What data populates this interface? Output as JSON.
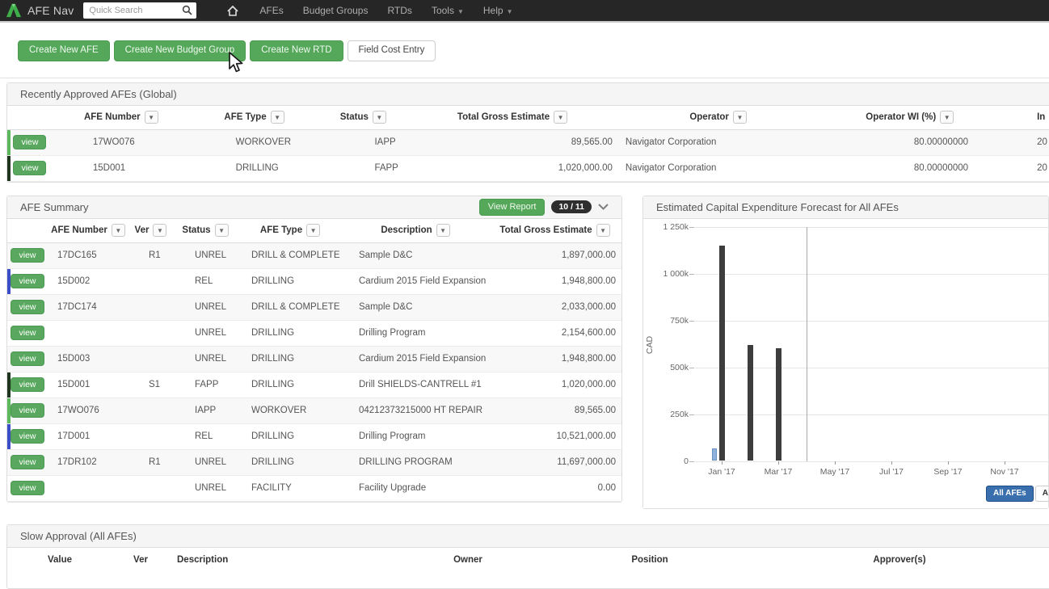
{
  "navbar": {
    "brand": "AFE Nav",
    "search_placeholder": "Quick Search",
    "items": [
      {
        "label": "AFEs",
        "has_caret": false
      },
      {
        "label": "Budget Groups",
        "has_caret": false
      },
      {
        "label": "RTDs",
        "has_caret": false
      },
      {
        "label": "Tools",
        "has_caret": true
      },
      {
        "label": "Help",
        "has_caret": true
      }
    ]
  },
  "toolbar": {
    "buttons": [
      {
        "label": "Create New AFE",
        "style": "green"
      },
      {
        "label": "Create New Budget Group",
        "style": "green"
      },
      {
        "label": "Create New RTD",
        "style": "green"
      },
      {
        "label": "Field Cost Entry",
        "style": "white"
      }
    ]
  },
  "recently_approved": {
    "title": "Recently Approved AFEs (Global)",
    "view_button_label": "view",
    "columns": [
      {
        "label": "AFE Number",
        "caret": true
      },
      {
        "label": "AFE Type",
        "caret": true
      },
      {
        "label": "Status",
        "caret": true
      },
      {
        "label": "Total Gross Estimate",
        "caret": true
      },
      {
        "label": "Operator",
        "caret": true
      },
      {
        "label": "Operator WI (%)",
        "caret": true
      },
      {
        "label": "In",
        "caret": false
      }
    ],
    "rows": [
      {
        "accent": "green",
        "cells": [
          "17WO076",
          "WORKOVER",
          "IAPP",
          "89,565.00",
          "Navigator Corporation",
          "80.00000000",
          "20"
        ]
      },
      {
        "accent": "dark",
        "cells": [
          "15D001",
          "DRILLING",
          "FAPP",
          "1,020,000.00",
          "Navigator Corporation",
          "80.00000000",
          "20"
        ]
      }
    ]
  },
  "afe_summary": {
    "title": "AFE Summary",
    "view_report_label": "View Report",
    "count_badge": "10 / 11",
    "view_button_label": "view",
    "columns": [
      {
        "label": "AFE Number",
        "caret": true
      },
      {
        "label": "Ver",
        "caret": true
      },
      {
        "label": "Status",
        "caret": true
      },
      {
        "label": "AFE Type",
        "caret": true
      },
      {
        "label": "Description",
        "caret": true
      },
      {
        "label": "Total Gross Estimate",
        "caret": true
      }
    ],
    "rows": [
      {
        "accent": "",
        "cells": [
          "17DC165",
          "R1",
          "UNREL",
          "DRILL & COMPLETE",
          "Sample D&C",
          "1,897,000.00"
        ]
      },
      {
        "accent": "blue",
        "cells": [
          "15D002",
          "",
          "REL",
          "DRILLING",
          "Cardium 2015 Field Expansion",
          "1,948,800.00"
        ]
      },
      {
        "accent": "",
        "cells": [
          "17DC174",
          "",
          "UNREL",
          "DRILL & COMPLETE",
          "Sample D&C",
          "2,033,000.00"
        ]
      },
      {
        "accent": "",
        "cells": [
          "",
          "",
          "UNREL",
          "DRILLING",
          "Drilling Program",
          "2,154,600.00"
        ]
      },
      {
        "accent": "",
        "cells": [
          "15D003",
          "",
          "UNREL",
          "DRILLING",
          "Cardium 2015 Field Expansion",
          "1,948,800.00"
        ]
      },
      {
        "accent": "dark",
        "cells": [
          "15D001",
          "S1",
          "FAPP",
          "DRILLING",
          "Drill SHIELDS-CANTRELL #1",
          "1,020,000.00"
        ]
      },
      {
        "accent": "green",
        "cells": [
          "17WO076",
          "",
          "IAPP",
          "WORKOVER",
          "04212373215000 HT REPAIR",
          "89,565.00"
        ]
      },
      {
        "accent": "blue",
        "cells": [
          "17D001",
          "",
          "REL",
          "DRILLING",
          "Drilling Program",
          "10,521,000.00"
        ]
      },
      {
        "accent": "",
        "cells": [
          "17DR102",
          "R1",
          "UNREL",
          "DRILLING",
          "DRILLING PROGRAM",
          "11,697,000.00"
        ]
      },
      {
        "accent": "",
        "cells": [
          "",
          "",
          "UNREL",
          "FACILITY",
          "Facility Upgrade",
          "0.00"
        ]
      }
    ]
  },
  "chart_data": {
    "type": "bar",
    "title": "Estimated Capital Expenditure Forecast for All AFEs",
    "xlabel": "",
    "ylabel": "CAD",
    "ylim": [
      0,
      1250000
    ],
    "ytick_labels": [
      "0",
      "250k",
      "500k",
      "750k",
      "1 000k",
      "1 250k"
    ],
    "months": [
      "Jan '17",
      "Feb '17",
      "Mar '17",
      "Apr '17",
      "May '17",
      "Jun '17",
      "Jul '17",
      "Aug '17",
      "Sep '17",
      "Oct '17",
      "Nov '17",
      "Dec '17"
    ],
    "xtick_months": [
      "Jan '17",
      "Mar '17",
      "May '17",
      "Jul '17",
      "Sep '17",
      "Nov '17"
    ],
    "grid": true,
    "series": [
      {
        "name": "blue-series",
        "color": "#8fb3dc",
        "border": "#6a94c4",
        "bars": [
          {
            "month": "Jan '17",
            "value": 65000
          }
        ]
      },
      {
        "name": "dark-series",
        "color": "#3d3d3d",
        "border": "#3d3d3d",
        "bars": [
          {
            "month": "Jan '17",
            "value": 1150000
          },
          {
            "month": "Feb '17",
            "value": 620000
          },
          {
            "month": "Mar '17",
            "value": 600000
          }
        ]
      }
    ],
    "marker_line_month": "Apr '17",
    "legend_position": "bottom-right",
    "legend": [
      {
        "label": "All AFEs",
        "active": true
      },
      {
        "label": "All Op",
        "active": false
      }
    ]
  },
  "slow_approval": {
    "title": "Slow Approval (All AFEs)",
    "columns": [
      "Value",
      "Ver",
      "Description",
      "Owner",
      "Position",
      "Approver(s)"
    ]
  },
  "colors": {
    "navbar_bg": "#262626",
    "logo_green": "#3fae4a",
    "button_green": "#55a85a",
    "accent_green": "#5cb85c",
    "accent_dark": "#20351f",
    "accent_blue": "#3c4ec7",
    "legend_active_blue": "#3a6fae",
    "bar_dark": "#3d3d3d",
    "bar_blue": "#8fb3dc"
  }
}
